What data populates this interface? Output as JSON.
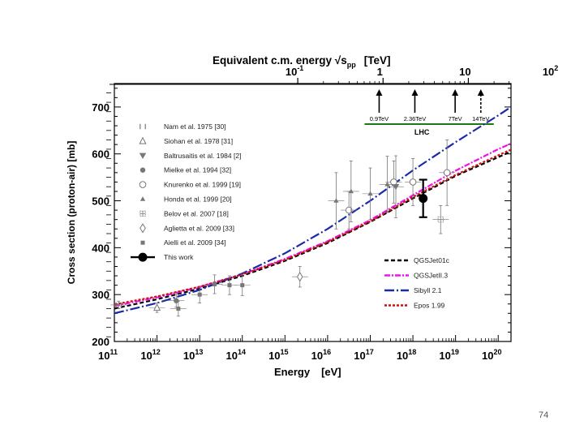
{
  "page": {
    "number": "74"
  },
  "chart_data": {
    "type": "scatter",
    "title": "Equivalent c.m. energy √s_pp [TeV]",
    "top_axis": {
      "label_main": "Equivalent c.m. energy √s",
      "label_sub": "pp",
      "label_unit": "[TeV]",
      "ticks": [
        {
          "value": 0.1,
          "label_base": "10",
          "label_exp": "-1"
        },
        {
          "value": 1,
          "label_base": "1",
          "label_exp": ""
        },
        {
          "value": 10,
          "label_base": "10",
          "label_exp": ""
        },
        {
          "value": 100,
          "label_base": "10",
          "label_exp": "2"
        }
      ]
    },
    "xlabel_main": "Energy",
    "xlabel_unit": "[eV]",
    "ylabel": "Cross section (proton-air)  [mb]",
    "xlim_log10": [
      11,
      20.3
    ],
    "ylim": [
      200,
      750
    ],
    "x_ticks": [
      {
        "exp": "11",
        "base": "10"
      },
      {
        "exp": "12",
        "base": "10"
      },
      {
        "exp": "13",
        "base": "10"
      },
      {
        "exp": "14",
        "base": "10"
      },
      {
        "exp": "15",
        "base": "10"
      },
      {
        "exp": "16",
        "base": "10"
      },
      {
        "exp": "17",
        "base": "10"
      },
      {
        "exp": "18",
        "base": "10"
      },
      {
        "exp": "19",
        "base": "10"
      },
      {
        "exp": "20",
        "base": "10"
      }
    ],
    "y_ticks": [
      "200",
      "300",
      "400",
      "500",
      "600",
      "700"
    ],
    "lhc": {
      "label": "LHC",
      "arrows": [
        {
          "label": "0.9TeV",
          "sqrt_s_tev": 0.9,
          "style": "solid"
        },
        {
          "label": "2.36TeV",
          "sqrt_s_tev": 2.36,
          "style": "solid"
        },
        {
          "label": "7TeV",
          "sqrt_s_tev": 7,
          "style": "solid"
        },
        {
          "label": "14TeV",
          "sqrt_s_tev": 14,
          "style": "dashed"
        }
      ]
    },
    "experiments": [
      {
        "label": "Nam et al. 1975  [30]",
        "marker": "cross-ticks",
        "color": "#777777",
        "points": [
          {
            "log_e": 11.1,
            "y": 278,
            "err": 8
          }
        ]
      },
      {
        "label": "Siohan et al. 1978  [31]",
        "marker": "triangle-open",
        "color": "#777777",
        "points": [
          {
            "log_e": 12.0,
            "y": 272,
            "err": 10
          }
        ]
      },
      {
        "label": "Baltrusaitis et al. 1984  [2]",
        "marker": "triangle-down-filled",
        "color": "#777777",
        "points": [
          {
            "log_e": 17.6,
            "y": 530,
            "err": 66
          }
        ]
      },
      {
        "label": "Mielke et al. 1994  [32]",
        "marker": "circle-filled",
        "color": "#777777",
        "points": [
          {
            "log_e": 12.45,
            "y": 287,
            "err": 14
          }
        ]
      },
      {
        "label": "Knurenko et al. 1999  [19]",
        "marker": "circle-open",
        "color": "#777777",
        "points": [
          {
            "log_e": 16.5,
            "y": 480,
            "err": 40
          },
          {
            "log_e": 17.55,
            "y": 540,
            "err": 45
          },
          {
            "log_e": 18.0,
            "y": 540,
            "err": 50
          },
          {
            "log_e": 18.8,
            "y": 560,
            "err": 70
          }
        ]
      },
      {
        "label": "Honda et al. 1999  [20]",
        "marker": "triangle-filled",
        "color": "#777777",
        "points": [
          {
            "log_e": 16.2,
            "y": 500,
            "err": 60
          },
          {
            "log_e": 16.55,
            "y": 520,
            "err": 65
          },
          {
            "log_e": 17.0,
            "y": 515,
            "err": 55
          },
          {
            "log_e": 17.4,
            "y": 535,
            "err": 60
          }
        ]
      },
      {
        "label": "Belov et al. 2007  [18]",
        "marker": "cross-box",
        "color": "#777777",
        "points": [
          {
            "log_e": 18.65,
            "y": 460,
            "err": 30
          }
        ]
      },
      {
        "label": "Aglietta et al. 2009  [33]",
        "marker": "diamond-open",
        "color": "#777777",
        "points": [
          {
            "log_e": 15.35,
            "y": 338,
            "err": 22
          }
        ]
      },
      {
        "label": "Aielli et al. 2009  [34]",
        "marker": "square-filled",
        "color": "#777777",
        "points": [
          {
            "log_e": 12.5,
            "y": 270,
            "err": 16
          },
          {
            "log_e": 13.0,
            "y": 300,
            "err": 18
          },
          {
            "log_e": 13.35,
            "y": 322,
            "err": 20
          },
          {
            "log_e": 13.7,
            "y": 320,
            "err": 20
          },
          {
            "log_e": 14.0,
            "y": 320,
            "err": 22
          }
        ]
      },
      {
        "label": "This work",
        "marker": "big-circle-filled",
        "color": "#000000",
        "points": [
          {
            "log_e": 18.24,
            "y": 505,
            "err": 40
          }
        ]
      }
    ],
    "models": [
      {
        "name": "QGSJet01c",
        "color": "#000000",
        "dash": "5,3",
        "points": [
          [
            11,
            270
          ],
          [
            12,
            290
          ],
          [
            13,
            313
          ],
          [
            14,
            340
          ],
          [
            15,
            372
          ],
          [
            16,
            410
          ],
          [
            17,
            455
          ],
          [
            18,
            505
          ],
          [
            19,
            553
          ],
          [
            20,
            593
          ],
          [
            20.3,
            605
          ]
        ]
      },
      {
        "name": "QGSJetII.3",
        "color": "#ee11ee",
        "dash": "7,2,2,2",
        "points": [
          [
            11,
            276
          ],
          [
            12,
            294
          ],
          [
            13,
            316
          ],
          [
            14,
            343
          ],
          [
            15,
            376
          ],
          [
            16,
            414
          ],
          [
            17,
            459
          ],
          [
            18,
            512
          ],
          [
            19,
            564
          ],
          [
            20,
            610
          ],
          [
            20.3,
            622
          ]
        ]
      },
      {
        "name": "Sibyll 2.1",
        "color": "#1a2aa8",
        "dash": "12,3,2,3",
        "points": [
          [
            11,
            260
          ],
          [
            12,
            282
          ],
          [
            13,
            310
          ],
          [
            14,
            345
          ],
          [
            15,
            388
          ],
          [
            16,
            440
          ],
          [
            17,
            500
          ],
          [
            18,
            565
          ],
          [
            19,
            625
          ],
          [
            20,
            682
          ],
          [
            20.3,
            700
          ]
        ]
      },
      {
        "name": "Epos 1.99",
        "color": "#cc1111",
        "dash": "3,2",
        "points": [
          [
            11,
            279
          ],
          [
            12,
            296
          ],
          [
            13,
            317
          ],
          [
            14,
            343
          ],
          [
            15,
            374
          ],
          [
            16,
            412
          ],
          [
            17,
            456
          ],
          [
            18,
            508
          ],
          [
            19,
            555
          ],
          [
            20,
            597
          ],
          [
            20.3,
            609
          ]
        ]
      }
    ]
  }
}
